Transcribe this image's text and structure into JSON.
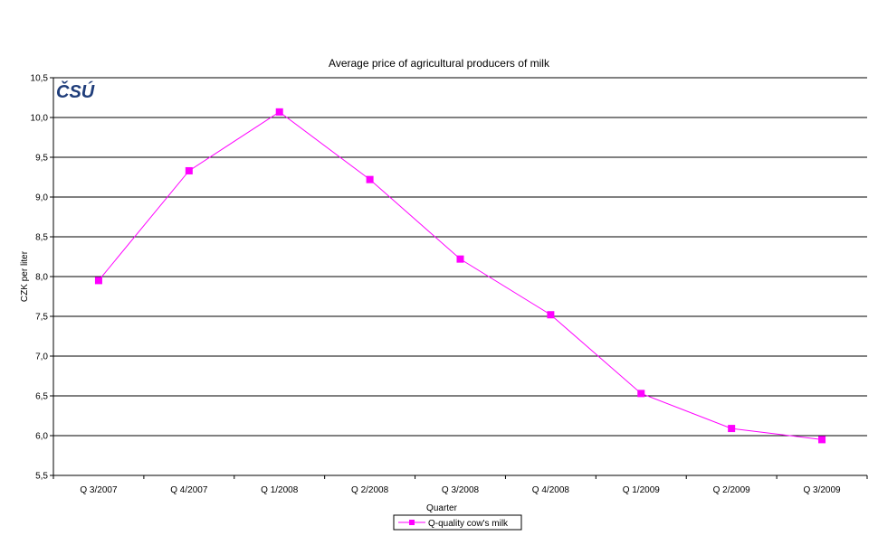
{
  "chart_data": {
    "type": "line",
    "title": "Average price of agricultural producers of milk",
    "xlabel": "Quarter",
    "ylabel": "CZK per liter",
    "ylim": [
      5.5,
      10.5
    ],
    "yticks": [
      "5,5",
      "6,0",
      "6,5",
      "7,0",
      "7,5",
      "8,0",
      "8,5",
      "9,0",
      "9,5",
      "10,0",
      "10,5"
    ],
    "categories": [
      "Q 3/2007",
      "Q 4/2007",
      "Q 1/2008",
      "Q 2/2008",
      "Q 3/2008",
      "Q 4/2008",
      "Q 1/2009",
      "Q 2/2009",
      "Q 3/2009"
    ],
    "series": [
      {
        "name": "Q-quality cow's milk",
        "values": [
          7.95,
          9.33,
          10.07,
          9.22,
          8.22,
          7.52,
          6.53,
          6.09,
          5.95
        ],
        "color": "#ff00ff"
      }
    ],
    "grid": true,
    "legend": "bottom-center",
    "logo": "ČSÚ",
    "logo_color": "#1f3d7a"
  }
}
